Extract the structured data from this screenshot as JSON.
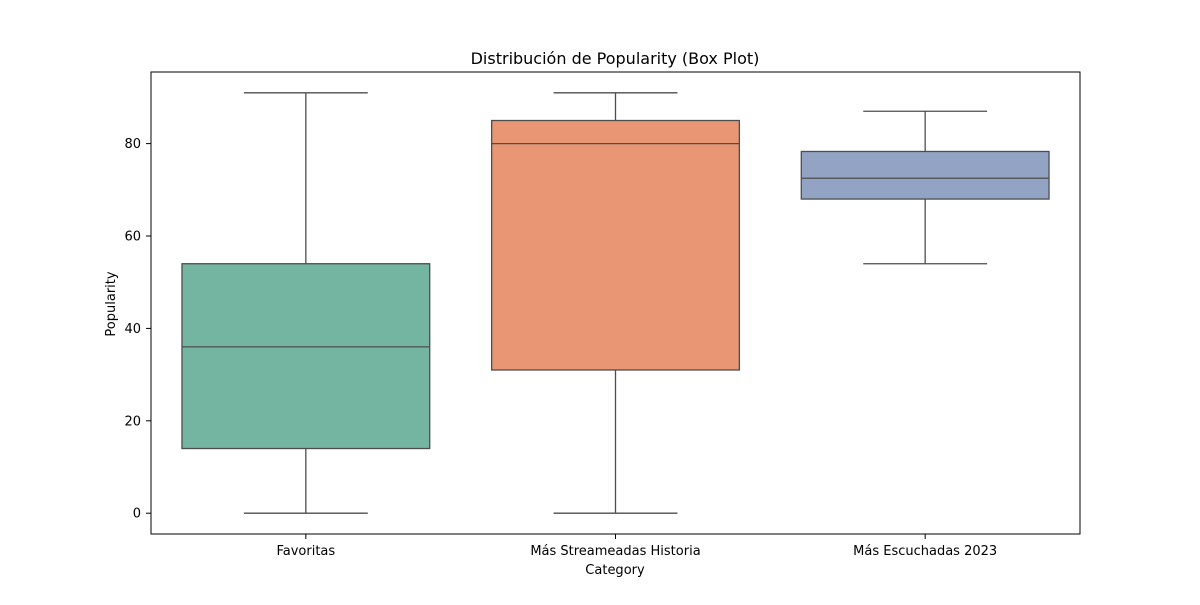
{
  "chart_data": {
    "type": "box",
    "title": "Distribución de Popularity (Box Plot)",
    "xlabel": "Category",
    "ylabel": "Popularity",
    "ylim": [
      -4.5,
      95.5
    ],
    "yticks": [
      0,
      20,
      40,
      60,
      80
    ],
    "grid": false,
    "legend": "none",
    "categories": [
      "Favoritas",
      "Más Streameadas Historia",
      "Más Escuchadas 2023"
    ],
    "boxes": [
      {
        "category": "Favoritas",
        "whisker_low": 0,
        "q1": 14,
        "median": 36,
        "q3": 54,
        "whisker_high": 91,
        "color": "#73b5a1"
      },
      {
        "category": "Más Streameadas Historia",
        "whisker_low": 0,
        "q1": 31,
        "median": 80,
        "q3": 85,
        "whisker_high": 91,
        "color": "#e99675"
      },
      {
        "category": "Más Escuchadas 2023",
        "whisker_low": 54,
        "q1": 68,
        "median": 72.5,
        "q3": 78.3,
        "whisker_high": 87,
        "color": "#93a3c4"
      }
    ],
    "line_color": "#4d4d4d"
  }
}
